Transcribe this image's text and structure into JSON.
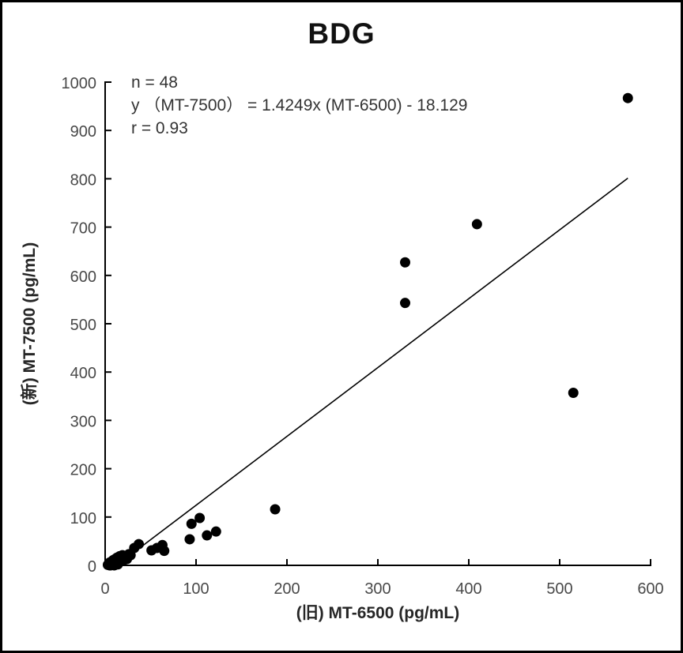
{
  "chart_data": {
    "type": "scatter",
    "title": "BDG",
    "xlabel": "(旧) MT-6500 (pg/mL)",
    "ylabel": "(新) MT-7500 (pg/mL)",
    "annotation": {
      "n": "n = 48",
      "equation": "y （MT-7500） = 1.4249x (MT-6500) - 18.129",
      "r": "r = 0.93"
    },
    "xlim": [
      0,
      600
    ],
    "ylim": [
      0,
      1000
    ],
    "xticks": [
      0,
      100,
      200,
      300,
      400,
      500,
      600
    ],
    "yticks": [
      0,
      100,
      200,
      300,
      400,
      500,
      600,
      700,
      800,
      900,
      1000
    ],
    "grid": false,
    "legend_position": "none",
    "marker_color": "#000000",
    "line_color": "#000000",
    "axis_color": "#000000",
    "tick_label_color": "#494949",
    "regression": {
      "slope": 1.4249,
      "intercept": -18.129,
      "n": 48,
      "r": 0.93,
      "x_draw_max": 575
    },
    "points": [
      [
        3,
        1
      ],
      [
        4,
        3
      ],
      [
        5,
        0
      ],
      [
        5,
        6
      ],
      [
        6,
        0
      ],
      [
        6,
        2
      ],
      [
        7,
        8
      ],
      [
        7,
        1
      ],
      [
        8,
        4
      ],
      [
        9,
        11
      ],
      [
        9,
        2
      ],
      [
        10,
        6
      ],
      [
        10,
        0
      ],
      [
        11,
        13
      ],
      [
        12,
        3
      ],
      [
        12,
        9
      ],
      [
        13,
        16
      ],
      [
        14,
        6
      ],
      [
        14,
        2
      ],
      [
        15,
        11
      ],
      [
        16,
        19
      ],
      [
        17,
        8
      ],
      [
        18,
        14
      ],
      [
        19,
        21
      ],
      [
        20,
        11
      ],
      [
        21,
        17
      ],
      [
        22,
        12
      ],
      [
        23,
        19
      ],
      [
        24,
        13
      ],
      [
        26,
        23
      ],
      [
        28,
        21
      ],
      [
        32,
        36
      ],
      [
        37,
        44
      ],
      [
        51,
        31
      ],
      [
        57,
        36
      ],
      [
        63,
        42
      ],
      [
        65,
        30
      ],
      [
        93,
        54
      ],
      [
        95,
        86
      ],
      [
        104,
        98
      ],
      [
        112,
        62
      ],
      [
        122,
        70
      ],
      [
        187,
        116
      ],
      [
        330,
        543
      ],
      [
        330,
        627
      ],
      [
        409,
        706
      ],
      [
        515,
        357
      ],
      [
        575,
        967
      ]
    ]
  }
}
